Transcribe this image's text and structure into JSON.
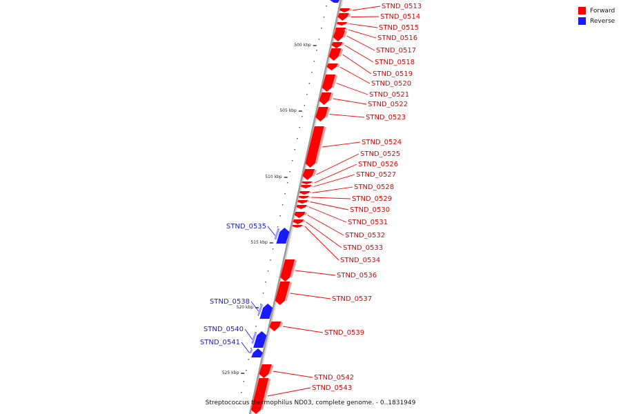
{
  "legend": {
    "forward_label": "Forward",
    "reverse_label": "Reverse",
    "forward_color": "#ff0000",
    "reverse_color": "#1a1aff"
  },
  "caption": "Streptococcus thermophilus ND03, complete genome. - 0..1831949",
  "colors": {
    "forward": "#ff0000",
    "forward_highlight": "#ff9a9a",
    "reverse": "#1a1aff",
    "reverse_highlight": "#9a9aff",
    "backbone": "#9a9a9a",
    "forward_label": "#e00000",
    "reverse_label": "#1a1acc",
    "tick": "#333333"
  },
  "scale_ticks": [
    "500 kbp",
    "505 kbp",
    "510 kbp",
    "515 kbp",
    "520 kbp",
    "525 kbp"
  ],
  "genes": [
    {
      "name": "STND_0513",
      "strand": "forward"
    },
    {
      "name": "STND_0514",
      "strand": "forward"
    },
    {
      "name": "STND_0515",
      "strand": "forward"
    },
    {
      "name": "STND_0516",
      "strand": "forward"
    },
    {
      "name": "STND_0517",
      "strand": "forward"
    },
    {
      "name": "STND_0518",
      "strand": "forward"
    },
    {
      "name": "STND_0519",
      "strand": "forward"
    },
    {
      "name": "STND_0520",
      "strand": "forward"
    },
    {
      "name": "STND_0521",
      "strand": "forward"
    },
    {
      "name": "STND_0522",
      "strand": "forward"
    },
    {
      "name": "STND_0523",
      "strand": "forward"
    },
    {
      "name": "STND_0524",
      "strand": "forward"
    },
    {
      "name": "STND_0525",
      "strand": "forward"
    },
    {
      "name": "STND_0526",
      "strand": "forward"
    },
    {
      "name": "STND_0527",
      "strand": "forward"
    },
    {
      "name": "STND_0528",
      "strand": "forward"
    },
    {
      "name": "STND_0529",
      "strand": "forward"
    },
    {
      "name": "STND_0530",
      "strand": "forward"
    },
    {
      "name": "STND_0531",
      "strand": "forward"
    },
    {
      "name": "STND_0532",
      "strand": "forward"
    },
    {
      "name": "STND_0533",
      "strand": "forward"
    },
    {
      "name": "STND_0534",
      "strand": "forward"
    },
    {
      "name": "STND_0535",
      "strand": "reverse"
    },
    {
      "name": "STND_0536",
      "strand": "forward"
    },
    {
      "name": "STND_0537",
      "strand": "forward"
    },
    {
      "name": "STND_0538",
      "strand": "reverse"
    },
    {
      "name": "STND_0539",
      "strand": "forward"
    },
    {
      "name": "STND_0540",
      "strand": "reverse"
    },
    {
      "name": "STND_0541",
      "strand": "reverse"
    },
    {
      "name": "STND_0542",
      "strand": "forward"
    },
    {
      "name": "STND_0543",
      "strand": "forward"
    }
  ]
}
